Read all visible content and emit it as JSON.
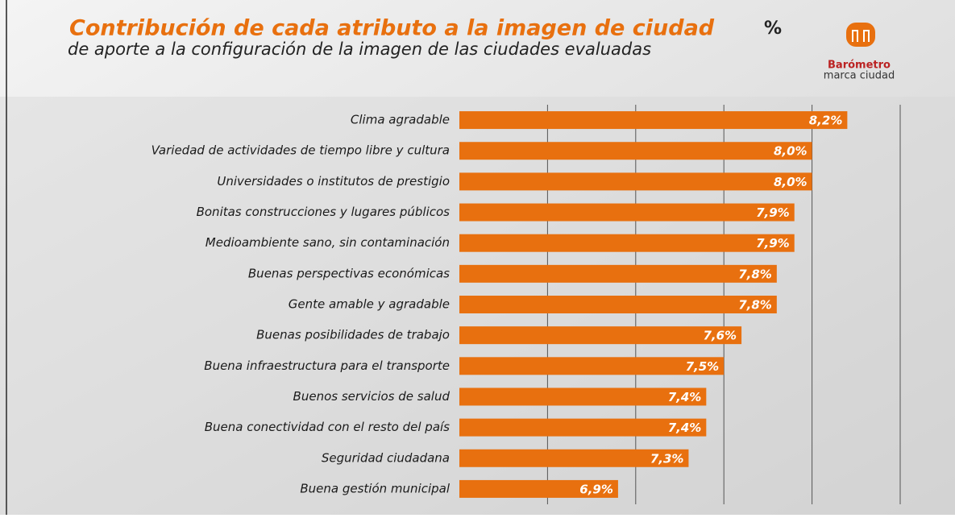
{
  "chart_data": {
    "type": "bar",
    "orientation": "horizontal",
    "title": "Contribución de cada atributo a la imagen de ciudad",
    "title_unit": "%",
    "subtitle": "de aporte a la configuración de la imagen de las ciudades evaluadas",
    "logo": {
      "name": "Barómetro",
      "tagline": "marca ciudad"
    },
    "categories": [
      "Clima agradable",
      "Variedad de actividades de tiempo libre y cultura",
      "Universidades o institutos de prestigio",
      "Bonitas construcciones y lugares públicos",
      "Medioambiente sano, sin contaminación",
      "Buenas perspectivas económicas",
      "Gente amable y agradable",
      "Buenas posibilidades de trabajo",
      "Buena infraestructura para el transporte",
      "Buenos servicios de salud",
      "Buena conectividad con el resto del país",
      "Seguridad ciudadana",
      "Buena gestión municipal"
    ],
    "values": [
      8.2,
      8.0,
      8.0,
      7.9,
      7.9,
      7.8,
      7.8,
      7.6,
      7.5,
      7.4,
      7.4,
      7.3,
      6.9
    ],
    "value_labels": [
      "8,2%",
      "8,0%",
      "8,0%",
      "7,9%",
      "7,9%",
      "7,8%",
      "7,8%",
      "7,6%",
      "7,5%",
      "7,4%",
      "7,4%",
      "7,3%",
      "6,9%"
    ],
    "color": "#e8700f",
    "xlim": [
      6,
      8.5
    ],
    "xticks": [
      6.5,
      7,
      7.5,
      8,
      8.5
    ],
    "grid": true
  }
}
